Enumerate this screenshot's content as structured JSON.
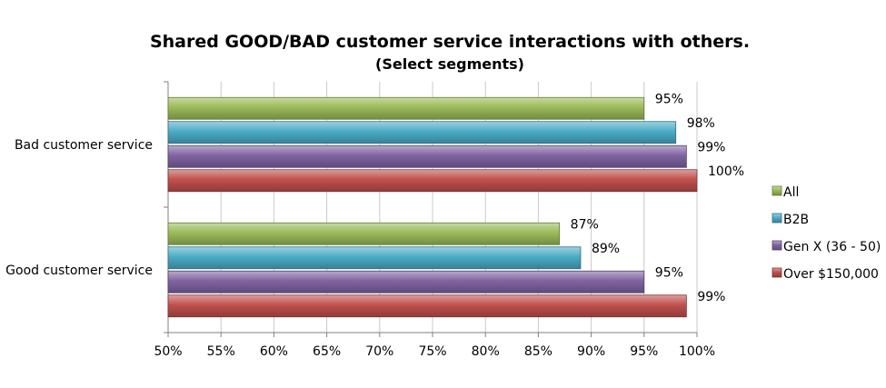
{
  "chart_data": {
    "type": "bar",
    "orientation": "horizontal",
    "title": "Shared GOOD/BAD customer service interactions with others.",
    "subtitle": "(Select segments)",
    "categories": [
      "Bad customer service",
      "Good customer service"
    ],
    "series": [
      {
        "name": "All",
        "values": [
          95,
          87
        ],
        "labels": [
          "95%",
          "87%"
        ]
      },
      {
        "name": "B2B",
        "values": [
          98,
          89
        ],
        "labels": [
          "98%",
          "89%"
        ]
      },
      {
        "name": "Gen X (36 - 50)",
        "values": [
          99,
          95
        ],
        "labels": [
          "99%",
          "95%"
        ]
      },
      {
        "name": "Over $150,000",
        "values": [
          100,
          99
        ],
        "labels": [
          "100%",
          "99%"
        ]
      }
    ],
    "colors": {
      "All": "#9bbb59",
      "B2B": "#4bacc6",
      "Gen X (36 - 50)": "#8064a2",
      "Over $150,000": "#c0504d"
    },
    "xlim": [
      50,
      100
    ],
    "xticks": [
      50,
      55,
      60,
      65,
      70,
      75,
      80,
      85,
      90,
      95,
      100
    ],
    "xtick_labels": [
      "50%",
      "55%",
      "60%",
      "65%",
      "70%",
      "75%",
      "80%",
      "85%",
      "90%",
      "95%",
      "100%"
    ],
    "xlabel": "",
    "ylabel": "",
    "grid": true,
    "legend": "right"
  }
}
